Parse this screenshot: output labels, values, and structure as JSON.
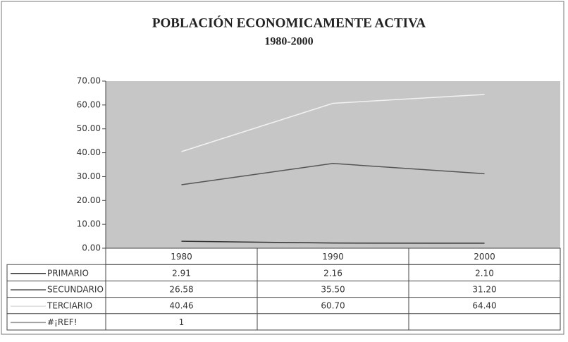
{
  "chart_data": {
    "type": "line",
    "title": "POBLACIÓN ECONOMICAMENTE ACTIVA",
    "subtitle": "1980-2000",
    "categories": [
      "1980",
      "1990",
      "2000"
    ],
    "series": [
      {
        "name": "PRIMARIO",
        "color": "#333333",
        "values": [
          2.91,
          2.16,
          2.1
        ],
        "value_labels": [
          "2.91",
          "2.16",
          "2.10"
        ]
      },
      {
        "name": "SECUNDARIO",
        "color": "#555555",
        "values": [
          26.58,
          35.5,
          31.2
        ],
        "value_labels": [
          "26.58",
          "35.50",
          "31.20"
        ]
      },
      {
        "name": "TERCIARIO",
        "color": "#f2f2f2",
        "values": [
          40.46,
          60.7,
          64.4
        ],
        "value_labels": [
          "40.46",
          "60.70",
          "64.40"
        ]
      },
      {
        "name": "#¡REF!",
        "color": "#999999",
        "values": [
          1,
          null,
          null
        ]
      }
    ],
    "ylim": [
      0,
      70
    ],
    "yticks": [
      {
        "value": 0,
        "label": "0.00"
      },
      {
        "value": 10,
        "label": "10.00"
      },
      {
        "value": 20,
        "label": "20.00"
      },
      {
        "value": 30,
        "label": "30.00"
      },
      {
        "value": 40,
        "label": "40.00"
      },
      {
        "value": 50,
        "label": "50.00"
      },
      {
        "value": 60,
        "label": "60.00"
      },
      {
        "value": 70,
        "label": "70.00"
      }
    ],
    "grid": false
  }
}
